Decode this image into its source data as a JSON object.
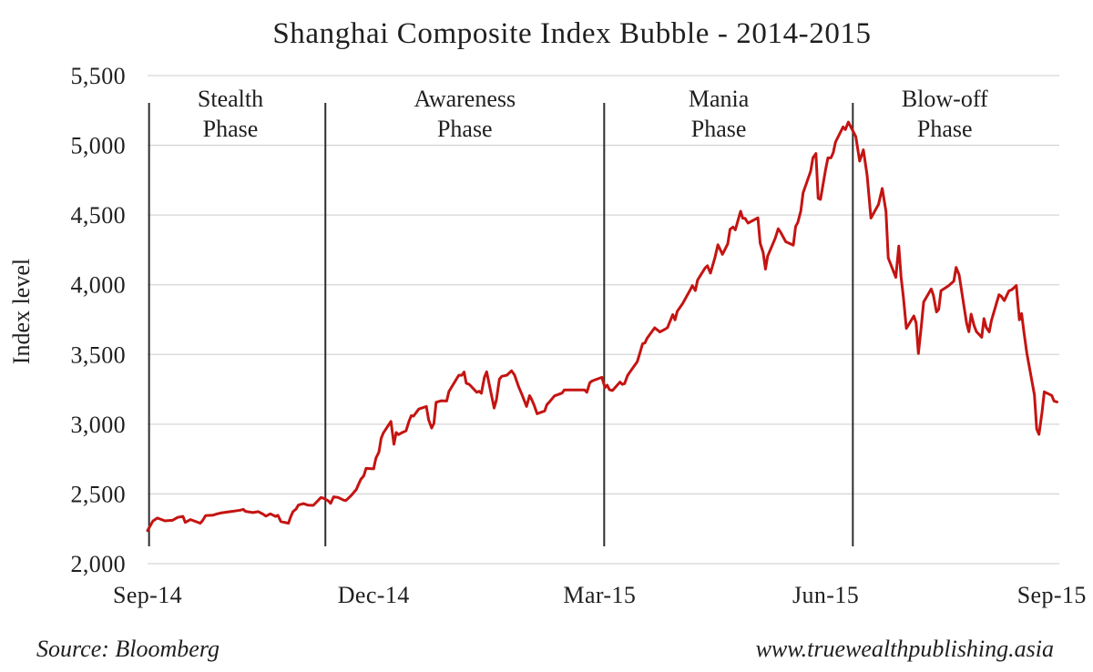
{
  "title": "Shanghai Composite Index Bubble - 2014-2015",
  "footer": {
    "source": "Source: Bloomberg",
    "website": "www.truewealthpublishing.asia"
  },
  "colors": {
    "background": "#ffffff",
    "text": "#1f1f1f",
    "grid": "#d6d6d6",
    "divider": "#2e2e2e",
    "line": "#c41412"
  },
  "chart_data": {
    "type": "line",
    "title": "Shanghai Composite Index Bubble - 2014-2015",
    "xlabel": "",
    "ylabel": "Index level",
    "x_unit": "months since Sep-2014",
    "xlim": [
      0,
      12.1
    ],
    "ylim": [
      2000,
      5500
    ],
    "grid": "horizontal",
    "legend": "none",
    "x_ticks": [
      {
        "m": 0,
        "label": "Sep-14"
      },
      {
        "m": 3,
        "label": "Dec-14"
      },
      {
        "m": 6,
        "label": "Mar-15"
      },
      {
        "m": 9,
        "label": "Jun-15"
      },
      {
        "m": 12,
        "label": "Sep-15"
      }
    ],
    "y_ticks": [
      {
        "v": 2000,
        "label": "2,000"
      },
      {
        "v": 2500,
        "label": "2,500"
      },
      {
        "v": 3000,
        "label": "3,000"
      },
      {
        "v": 3500,
        "label": "3,500"
      },
      {
        "v": 4000,
        "label": "4,000"
      },
      {
        "v": 4500,
        "label": "4,500"
      },
      {
        "v": 5000,
        "label": "5,000"
      },
      {
        "v": 5500,
        "label": "5,500"
      }
    ],
    "phases": [
      {
        "name": "Stealth Phase",
        "label_lines": [
          "Stealth",
          "Phase"
        ],
        "label_center_m": 1.1,
        "divider_m": 0.02
      },
      {
        "name": "Awareness Phase",
        "label_lines": [
          "Awareness",
          "Phase"
        ],
        "label_center_m": 4.21,
        "divider_m": 2.36
      },
      {
        "name": "Mania Phase",
        "label_lines": [
          "Mania",
          "Phase"
        ],
        "label_center_m": 7.58,
        "divider_m": 6.06
      },
      {
        "name": "Blow-off Phase",
        "label_lines": [
          "Blow-off",
          "Phase"
        ],
        "label_center_m": 10.58,
        "divider_m": 9.36
      }
    ],
    "series": [
      {
        "name": "Shanghai Composite Index",
        "color": "#c41412",
        "points": [
          [
            0.0,
            2237
          ],
          [
            0.07,
            2305
          ],
          [
            0.13,
            2327
          ],
          [
            0.23,
            2307
          ],
          [
            0.33,
            2311
          ],
          [
            0.4,
            2332
          ],
          [
            0.47,
            2339
          ],
          [
            0.5,
            2296
          ],
          [
            0.57,
            2316
          ],
          [
            0.7,
            2290
          ],
          [
            0.73,
            2308
          ],
          [
            0.77,
            2345
          ],
          [
            0.87,
            2348
          ],
          [
            0.93,
            2358
          ],
          [
            0.97,
            2363
          ],
          [
            1.23,
            2383
          ],
          [
            1.27,
            2389
          ],
          [
            1.3,
            2375
          ],
          [
            1.4,
            2366
          ],
          [
            1.47,
            2373
          ],
          [
            1.53,
            2356
          ],
          [
            1.57,
            2341
          ],
          [
            1.63,
            2357
          ],
          [
            1.7,
            2339
          ],
          [
            1.73,
            2347
          ],
          [
            1.77,
            2302
          ],
          [
            1.87,
            2290
          ],
          [
            1.9,
            2337
          ],
          [
            1.93,
            2373
          ],
          [
            1.97,
            2391
          ],
          [
            2.0,
            2420
          ],
          [
            2.07,
            2430
          ],
          [
            2.13,
            2419
          ],
          [
            2.2,
            2418
          ],
          [
            2.3,
            2474
          ],
          [
            2.33,
            2470
          ],
          [
            2.4,
            2450
          ],
          [
            2.43,
            2432
          ],
          [
            2.47,
            2479
          ],
          [
            2.53,
            2475
          ],
          [
            2.6,
            2456
          ],
          [
            2.63,
            2452
          ],
          [
            2.7,
            2487
          ],
          [
            2.77,
            2532
          ],
          [
            2.8,
            2568
          ],
          [
            2.83,
            2604
          ],
          [
            2.87,
            2630
          ],
          [
            2.9,
            2683
          ],
          [
            3.0,
            2680
          ],
          [
            3.03,
            2756
          ],
          [
            3.07,
            2800
          ],
          [
            3.1,
            2899
          ],
          [
            3.13,
            2938
          ],
          [
            3.23,
            3020
          ],
          [
            3.27,
            2856
          ],
          [
            3.3,
            2940
          ],
          [
            3.33,
            2925
          ],
          [
            3.37,
            2938
          ],
          [
            3.43,
            2953
          ],
          [
            3.47,
            3022
          ],
          [
            3.5,
            3061
          ],
          [
            3.53,
            3058
          ],
          [
            3.6,
            3109
          ],
          [
            3.7,
            3127
          ],
          [
            3.73,
            3032
          ],
          [
            3.77,
            2972
          ],
          [
            3.8,
            3006
          ],
          [
            3.83,
            3157
          ],
          [
            3.9,
            3168
          ],
          [
            3.97,
            3166
          ],
          [
            4.0,
            3235
          ],
          [
            4.13,
            3351
          ],
          [
            4.17,
            3351
          ],
          [
            4.2,
            3374
          ],
          [
            4.23,
            3294
          ],
          [
            4.27,
            3286
          ],
          [
            4.37,
            3229
          ],
          [
            4.4,
            3236
          ],
          [
            4.43,
            3222
          ],
          [
            4.47,
            3336
          ],
          [
            4.5,
            3376
          ],
          [
            4.6,
            3116
          ],
          [
            4.63,
            3174
          ],
          [
            4.67,
            3323
          ],
          [
            4.7,
            3343
          ],
          [
            4.77,
            3352
          ],
          [
            4.83,
            3383
          ],
          [
            4.87,
            3353
          ],
          [
            4.9,
            3306
          ],
          [
            4.93,
            3262
          ],
          [
            4.97,
            3210
          ],
          [
            5.03,
            3128
          ],
          [
            5.07,
            3205
          ],
          [
            5.1,
            3175
          ],
          [
            5.13,
            3136
          ],
          [
            5.17,
            3075
          ],
          [
            5.27,
            3095
          ],
          [
            5.3,
            3141
          ],
          [
            5.33,
            3157
          ],
          [
            5.4,
            3203
          ],
          [
            5.5,
            3223
          ],
          [
            5.53,
            3246
          ],
          [
            5.8,
            3246
          ],
          [
            5.83,
            3229
          ],
          [
            5.87,
            3298
          ],
          [
            5.9,
            3310
          ],
          [
            6.03,
            3336
          ],
          [
            6.07,
            3263
          ],
          [
            6.1,
            3280
          ],
          [
            6.13,
            3248
          ],
          [
            6.17,
            3241
          ],
          [
            6.27,
            3302
          ],
          [
            6.3,
            3286
          ],
          [
            6.33,
            3291
          ],
          [
            6.37,
            3349
          ],
          [
            6.4,
            3373
          ],
          [
            6.5,
            3449
          ],
          [
            6.53,
            3503
          ],
          [
            6.57,
            3577
          ],
          [
            6.6,
            3582
          ],
          [
            6.63,
            3617
          ],
          [
            6.73,
            3691
          ],
          [
            6.8,
            3661
          ],
          [
            6.87,
            3682
          ],
          [
            6.9,
            3692
          ],
          [
            6.97,
            3786
          ],
          [
            7.0,
            3748
          ],
          [
            7.03,
            3810
          ],
          [
            7.1,
            3864
          ],
          [
            7.2,
            3961
          ],
          [
            7.23,
            3994
          ],
          [
            7.27,
            3958
          ],
          [
            7.3,
            4034
          ],
          [
            7.4,
            4121
          ],
          [
            7.43,
            4136
          ],
          [
            7.47,
            4084
          ],
          [
            7.53,
            4194
          ],
          [
            7.57,
            4287
          ],
          [
            7.63,
            4218
          ],
          [
            7.7,
            4293
          ],
          [
            7.73,
            4398
          ],
          [
            7.77,
            4414
          ],
          [
            7.8,
            4394
          ],
          [
            7.87,
            4527
          ],
          [
            7.9,
            4476
          ],
          [
            7.93,
            4476
          ],
          [
            7.97,
            4442
          ],
          [
            8.1,
            4480
          ],
          [
            8.13,
            4298
          ],
          [
            8.17,
            4230
          ],
          [
            8.2,
            4112
          ],
          [
            8.23,
            4205
          ],
          [
            8.33,
            4333
          ],
          [
            8.37,
            4402
          ],
          [
            8.4,
            4378
          ],
          [
            8.47,
            4308
          ],
          [
            8.57,
            4284
          ],
          [
            8.6,
            4418
          ],
          [
            8.63,
            4446
          ],
          [
            8.67,
            4529
          ],
          [
            8.7,
            4658
          ],
          [
            8.8,
            4814
          ],
          [
            8.83,
            4910
          ],
          [
            8.87,
            4941
          ],
          [
            8.9,
            4620
          ],
          [
            8.93,
            4612
          ],
          [
            9.0,
            4829
          ],
          [
            9.03,
            4910
          ],
          [
            9.07,
            4910
          ],
          [
            9.1,
            4947
          ],
          [
            9.13,
            5023
          ],
          [
            9.23,
            5132
          ],
          [
            9.26,
            5113
          ],
          [
            9.3,
            5166
          ],
          [
            9.4,
            5062
          ],
          [
            9.45,
            4887
          ],
          [
            9.5,
            4967
          ],
          [
            9.55,
            4785
          ],
          [
            9.6,
            4478
          ],
          [
            9.7,
            4576
          ],
          [
            9.75,
            4690
          ],
          [
            9.8,
            4527
          ],
          [
            9.83,
            4192
          ],
          [
            9.93,
            4053
          ],
          [
            9.97,
            4277
          ],
          [
            10.0,
            4054
          ],
          [
            10.03,
            3912
          ],
          [
            10.07,
            3687
          ],
          [
            10.17,
            3776
          ],
          [
            10.2,
            3727
          ],
          [
            10.23,
            3507
          ],
          [
            10.27,
            3709
          ],
          [
            10.3,
            3877
          ],
          [
            10.4,
            3970
          ],
          [
            10.43,
            3924
          ],
          [
            10.47,
            3805
          ],
          [
            10.5,
            3823
          ],
          [
            10.53,
            3957
          ],
          [
            10.63,
            3992
          ],
          [
            10.7,
            4026
          ],
          [
            10.73,
            4124
          ],
          [
            10.77,
            4071
          ],
          [
            10.87,
            3726
          ],
          [
            10.9,
            3663
          ],
          [
            10.93,
            3789
          ],
          [
            10.97,
            3706
          ],
          [
            11.0,
            3664
          ],
          [
            11.07,
            3623
          ],
          [
            11.1,
            3757
          ],
          [
            11.13,
            3694
          ],
          [
            11.17,
            3662
          ],
          [
            11.2,
            3744
          ],
          [
            11.3,
            3928
          ],
          [
            11.33,
            3917
          ],
          [
            11.37,
            3886
          ],
          [
            11.43,
            3955
          ],
          [
            11.47,
            3965
          ],
          [
            11.53,
            3994
          ],
          [
            11.57,
            3748
          ],
          [
            11.6,
            3794
          ],
          [
            11.63,
            3664
          ],
          [
            11.67,
            3508
          ],
          [
            11.77,
            3210
          ],
          [
            11.8,
            2965
          ],
          [
            11.83,
            2927
          ],
          [
            11.87,
            3083
          ],
          [
            11.9,
            3232
          ],
          [
            12.0,
            3206
          ],
          [
            12.03,
            3166
          ],
          [
            12.07,
            3160
          ]
        ]
      }
    ]
  }
}
